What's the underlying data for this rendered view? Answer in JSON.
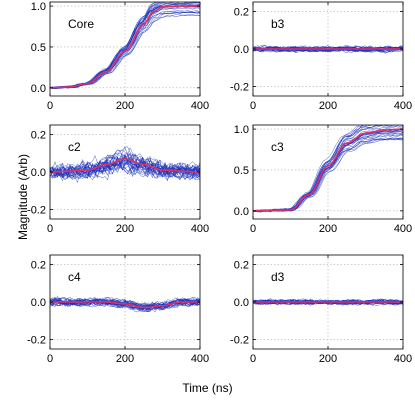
{
  "figure": {
    "ylabel": "Magnitude (Arb)",
    "xlabel": "Time (ns)"
  },
  "chart_data": [
    {
      "type": "line",
      "panel_label": "Core",
      "xlim": [
        0,
        400
      ],
      "ylim": [
        -0.1,
        1.05
      ],
      "xticks": [
        0,
        200,
        400
      ],
      "yticks": [
        0,
        0.5,
        1
      ],
      "ytick_labels": [
        "0.0",
        "0.5",
        "1.0"
      ],
      "grid": true,
      "shape": "rise",
      "spread": 0.01,
      "x": [
        0,
        50,
        100,
        150,
        200,
        250,
        275,
        300,
        350,
        400
      ],
      "mean": [
        0.0,
        0.01,
        0.05,
        0.2,
        0.45,
        0.78,
        0.93,
        0.99,
        1.0,
        1.0
      ],
      "trace_count": 30,
      "colors": {
        "traces": "#1a2fb8",
        "mean": "#e0306a"
      }
    },
    {
      "type": "line",
      "panel_label": "b3",
      "xlim": [
        0,
        400
      ],
      "ylim": [
        -0.25,
        0.25
      ],
      "xticks": [
        0,
        200,
        400
      ],
      "yticks": [
        -0.2,
        0,
        0.2
      ],
      "ytick_labels": [
        "-0.2",
        "0.0",
        "0.2"
      ],
      "grid": true,
      "shape": "flat",
      "spread": 0.012,
      "x": [
        0,
        100,
        200,
        300,
        400
      ],
      "mean": [
        0.0,
        0.0,
        0.0,
        0.0,
        0.0
      ],
      "trace_count": 30,
      "colors": {
        "traces": "#1a2fb8",
        "mean": "#e0306a"
      }
    },
    {
      "type": "line",
      "panel_label": "c2",
      "xlim": [
        0,
        400
      ],
      "ylim": [
        -0.25,
        0.25
      ],
      "xticks": [
        0,
        200,
        400
      ],
      "yticks": [
        -0.2,
        0,
        0.2
      ],
      "ytick_labels": [
        "-0.2",
        "0.0",
        "0.2"
      ],
      "grid": true,
      "shape": "bump",
      "spread": 0.035,
      "x": [
        0,
        100,
        150,
        200,
        250,
        300,
        400
      ],
      "mean": [
        0.0,
        0.01,
        0.04,
        0.07,
        0.04,
        0.01,
        0.0
      ],
      "trace_count": 30,
      "colors": {
        "traces": "#1a2fb8",
        "mean": "#e0306a"
      }
    },
    {
      "type": "line",
      "panel_label": "c3",
      "xlim": [
        0,
        400
      ],
      "ylim": [
        -0.1,
        1.05
      ],
      "xticks": [
        0,
        200,
        400
      ],
      "yticks": [
        0,
        0.5,
        1
      ],
      "ytick_labels": [
        "0.0",
        "0.5",
        "1.0"
      ],
      "grid": true,
      "shape": "rise",
      "spread": 0.012,
      "x": [
        0,
        100,
        150,
        200,
        250,
        300,
        350,
        400
      ],
      "mean": [
        0.0,
        0.01,
        0.2,
        0.55,
        0.83,
        0.95,
        0.99,
        1.0
      ],
      "trace_count": 30,
      "colors": {
        "traces": "#1a2fb8",
        "mean": "#e0306a"
      }
    },
    {
      "type": "line",
      "panel_label": "c4",
      "xlim": [
        0,
        400
      ],
      "ylim": [
        -0.25,
        0.25
      ],
      "xticks": [
        0,
        200,
        400
      ],
      "yticks": [
        -0.2,
        0,
        0.2
      ],
      "ytick_labels": [
        "-0.2",
        "0.0",
        "0.2"
      ],
      "grid": true,
      "shape": "dip",
      "spread": 0.018,
      "x": [
        0,
        150,
        200,
        250,
        300,
        350,
        400
      ],
      "mean": [
        0.0,
        0.0,
        -0.01,
        -0.03,
        -0.02,
        0.0,
        0.0
      ],
      "trace_count": 30,
      "colors": {
        "traces": "#1a2fb8",
        "mean": "#e0306a"
      }
    },
    {
      "type": "line",
      "panel_label": "d3",
      "xlim": [
        0,
        400
      ],
      "ylim": [
        -0.25,
        0.25
      ],
      "xticks": [
        0,
        200,
        400
      ],
      "yticks": [
        -0.2,
        0,
        0.2
      ],
      "ytick_labels": [
        "-0.2",
        "0.0",
        "0.2"
      ],
      "grid": true,
      "shape": "flat",
      "spread": 0.011,
      "x": [
        0,
        100,
        200,
        300,
        400
      ],
      "mean": [
        0.0,
        0.0,
        0.0,
        0.0,
        0.0
      ],
      "trace_count": 30,
      "colors": {
        "traces": "#1a2fb8",
        "mean": "#e0306a"
      }
    }
  ]
}
